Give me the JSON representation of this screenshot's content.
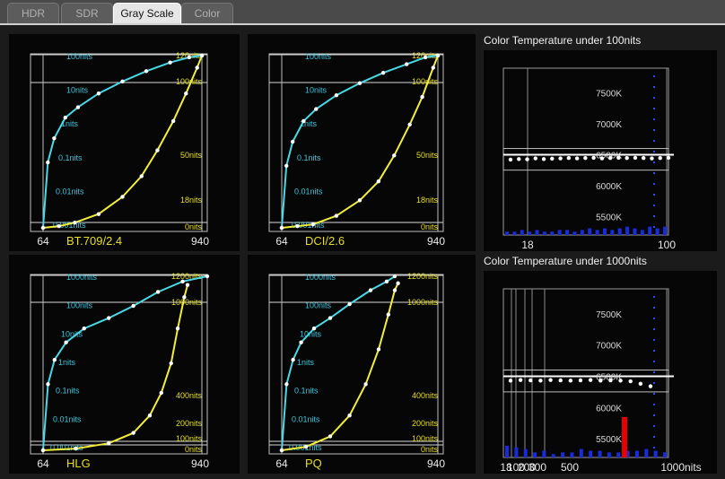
{
  "tabs": [
    {
      "label": "HDR",
      "active": false
    },
    {
      "label": "SDR",
      "active": false
    },
    {
      "label": "Gray Scale",
      "active": true
    },
    {
      "label": "Color",
      "active": false
    }
  ],
  "colors": {
    "cyan_curve": "#49d9e6",
    "yellow_curve": "#f2ee3c",
    "cyan_text": "#3bc7df",
    "yellow_text": "#e8df20",
    "blue_bars": "#1a2bdc",
    "red_bar": "#e80000"
  },
  "gamma_panels": [
    {
      "name": "BT.709/2.4",
      "x_start": "64",
      "x_end": "940",
      "cyan_labels": [
        "100nits",
        "10nits",
        "1nits",
        "0.1nits",
        "0.01nits",
        "0.001nits"
      ],
      "yellow_labels": [
        "120nits",
        "100nits",
        "50nits",
        "18nits",
        "0nits"
      ],
      "chart_data": {
        "type": "line",
        "series": [
          {
            "values": [
              [
                0.0,
                0.0
              ],
              [
                0.03,
                0.38
              ],
              [
                0.07,
                0.52
              ],
              [
                0.14,
                0.64
              ],
              [
                0.22,
                0.7
              ],
              [
                0.35,
                0.78
              ],
              [
                0.5,
                0.85
              ],
              [
                0.65,
                0.91
              ],
              [
                0.8,
                0.96
              ],
              [
                0.92,
                0.99
              ],
              [
                1.0,
                1.0
              ]
            ]
          },
          {
            "values": [
              [
                0.0,
                0.0
              ],
              [
                0.1,
                0.01
              ],
              [
                0.2,
                0.03
              ],
              [
                0.35,
                0.08
              ],
              [
                0.5,
                0.18
              ],
              [
                0.62,
                0.3
              ],
              [
                0.72,
                0.45
              ],
              [
                0.82,
                0.62
              ],
              [
                0.9,
                0.78
              ],
              [
                0.97,
                0.93
              ],
              [
                1.0,
                1.0
              ]
            ]
          }
        ]
      }
    },
    {
      "name": "DCI/2.6",
      "x_start": "64",
      "x_end": "940",
      "cyan_labels": [
        "100nits",
        "10nits",
        "1nits",
        "0.1nits",
        "0.01nits",
        "0.001nits"
      ],
      "yellow_labels": [
        "120nits",
        "100nits",
        "50nits",
        "18nits",
        "0nits"
      ],
      "chart_data": {
        "type": "line",
        "series": [
          {
            "values": [
              [
                0.0,
                0.0
              ],
              [
                0.03,
                0.36
              ],
              [
                0.07,
                0.5
              ],
              [
                0.14,
                0.62
              ],
              [
                0.22,
                0.69
              ],
              [
                0.35,
                0.77
              ],
              [
                0.5,
                0.84
              ],
              [
                0.65,
                0.9
              ],
              [
                0.8,
                0.95
              ],
              [
                0.92,
                0.99
              ],
              [
                1.0,
                1.0
              ]
            ]
          },
          {
            "values": [
              [
                0.0,
                0.0
              ],
              [
                0.1,
                0.01
              ],
              [
                0.2,
                0.02
              ],
              [
                0.35,
                0.07
              ],
              [
                0.5,
                0.16
              ],
              [
                0.62,
                0.27
              ],
              [
                0.72,
                0.42
              ],
              [
                0.82,
                0.6
              ],
              [
                0.9,
                0.76
              ],
              [
                0.97,
                0.93
              ],
              [
                1.0,
                1.0
              ]
            ]
          }
        ]
      }
    },
    {
      "name": "HLG",
      "x_start": "64",
      "x_end": "940",
      "cyan_labels": [
        "1000nits",
        "100nits",
        "10nits",
        "1nits",
        "0.1nits",
        "0.01nits",
        "0.001nits"
      ],
      "yellow_labels": [
        "1200nits",
        "1000nits",
        "400nits",
        "200nits",
        "100nits",
        "0nits"
      ],
      "chart_data": {
        "type": "line",
        "series": [
          {
            "values": [
              [
                0.0,
                0.0
              ],
              [
                0.03,
                0.38
              ],
              [
                0.07,
                0.52
              ],
              [
                0.14,
                0.62
              ],
              [
                0.25,
                0.7
              ],
              [
                0.4,
                0.76
              ],
              [
                0.55,
                0.83
              ],
              [
                0.7,
                0.91
              ],
              [
                0.85,
                0.97
              ],
              [
                1.0,
                1.0
              ]
            ]
          },
          {
            "values": [
              [
                0.0,
                0.0
              ],
              [
                0.2,
                0.01
              ],
              [
                0.4,
                0.04
              ],
              [
                0.55,
                0.1
              ],
              [
                0.65,
                0.2
              ],
              [
                0.72,
                0.33
              ],
              [
                0.78,
                0.5
              ],
              [
                0.82,
                0.7
              ],
              [
                0.86,
                0.88
              ],
              [
                0.88,
                0.95
              ]
            ]
          }
        ]
      }
    },
    {
      "name": "PQ",
      "x_start": "64",
      "x_end": "940",
      "cyan_labels": [
        "1000nits",
        "100nits",
        "10nits",
        "1nits",
        "0.1nits",
        "0.01nits",
        "0.001nits"
      ],
      "yellow_labels": [
        "1200nits",
        "1000nits",
        "400nits",
        "200nits",
        "100nits",
        "0nits"
      ],
      "chart_data": {
        "type": "line",
        "series": [
          {
            "values": [
              [
                0.0,
                0.0
              ],
              [
                0.03,
                0.38
              ],
              [
                0.07,
                0.52
              ],
              [
                0.12,
                0.62
              ],
              [
                0.2,
                0.7
              ],
              [
                0.3,
                0.76
              ],
              [
                0.42,
                0.84
              ],
              [
                0.55,
                0.92
              ],
              [
                0.65,
                0.97
              ],
              [
                0.7,
                1.0
              ]
            ]
          },
          {
            "values": [
              [
                0.0,
                0.0
              ],
              [
                0.15,
                0.02
              ],
              [
                0.3,
                0.08
              ],
              [
                0.42,
                0.2
              ],
              [
                0.52,
                0.38
              ],
              [
                0.6,
                0.58
              ],
              [
                0.66,
                0.78
              ],
              [
                0.7,
                0.92
              ],
              [
                0.72,
                0.96
              ]
            ]
          }
        ]
      }
    }
  ],
  "ct_panels": [
    {
      "title": "Color Temperature under 100nits",
      "y_labels": [
        "7500K",
        "7000K",
        "6500K",
        "6000K",
        "5500K"
      ],
      "x_labels": [
        "18",
        "100"
      ],
      "chart_data": {
        "type": "scatter",
        "y_range": [
          5200,
          7900
        ],
        "white_points": [
          6420,
          6430,
          6425,
          6440,
          6430,
          6435,
          6440,
          6445,
          6440,
          6445,
          6450,
          6440,
          6445,
          6450,
          6445,
          6450,
          6445,
          6440,
          6445,
          6450
        ],
        "blue_bars": [
          0.02,
          0.02,
          0.03,
          0.02,
          0.03,
          0.02,
          0.02,
          0.03,
          0.03,
          0.02,
          0.03,
          0.04,
          0.03,
          0.04,
          0.03,
          0.04,
          0.05,
          0.04,
          0.03,
          0.05,
          0.04,
          0.05
        ]
      }
    },
    {
      "title": "Color Temperature under 1000nits",
      "y_labels": [
        "7500K",
        "7000K",
        "6500K",
        "6000K",
        "5500K"
      ],
      "x_labels": [
        "18",
        "100",
        "200",
        "300",
        "500",
        "1000nits"
      ],
      "chart_data": {
        "type": "scatter",
        "y_range": [
          5200,
          7900
        ],
        "white_points": [
          6430,
          6440,
          6435,
          6430,
          6440,
          6435,
          6430,
          6435,
          6440,
          6430,
          6435,
          6430,
          6420,
          6380,
          6340
        ],
        "blue_bars": [
          0.07,
          0.06,
          0.05,
          0.03,
          0.04,
          0.02,
          0.03,
          0.03,
          0.05,
          0.04,
          0.04,
          0.03,
          0.03,
          0.04,
          0.04,
          0.05,
          0.04,
          0.03
        ],
        "red_bar": 0.24
      }
    }
  ]
}
